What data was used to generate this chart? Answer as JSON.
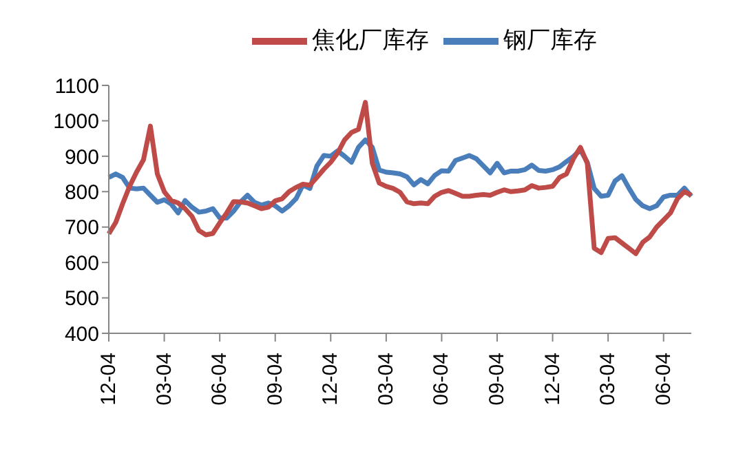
{
  "chart_data": {
    "type": "line",
    "categories": [
      "12-04",
      null,
      null,
      null,
      null,
      null,
      null,
      null,
      "03-04",
      null,
      null,
      null,
      null,
      null,
      null,
      null,
      "06-04",
      null,
      null,
      null,
      null,
      null,
      null,
      null,
      "09-04",
      null,
      null,
      null,
      null,
      null,
      null,
      null,
      "12-04",
      null,
      null,
      null,
      null,
      null,
      null,
      null,
      "03-04",
      null,
      null,
      null,
      null,
      null,
      null,
      null,
      "06-04",
      null,
      null,
      null,
      null,
      null,
      null,
      null,
      "09-04",
      null,
      null,
      null,
      null,
      null,
      null,
      null,
      "12-04",
      null,
      null,
      null,
      null,
      null,
      null,
      null,
      "03-04",
      null,
      null,
      null,
      null,
      null,
      null,
      null,
      "06-04",
      null,
      null,
      null,
      null
    ],
    "series": [
      {
        "name": "钢厂库存",
        "color": "#4a7ebb",
        "values": [
          840,
          850,
          840,
          810,
          808,
          810,
          790,
          770,
          777,
          765,
          740,
          775,
          756,
          742,
          745,
          752,
          726,
          725,
          745,
          771,
          790,
          770,
          762,
          768,
          760,
          745,
          760,
          780,
          819,
          809,
          872,
          902,
          900,
          915,
          900,
          883,
          925,
          946,
          925,
          861,
          855,
          853,
          850,
          842,
          819,
          834,
          822,
          846,
          859,
          858,
          888,
          895,
          902,
          893,
          873,
          853,
          880,
          853,
          858,
          858,
          862,
          875,
          860,
          858,
          862,
          870,
          885,
          899,
          918,
          883,
          809,
          787,
          790,
          830,
          845,
          810,
          778,
          760,
          752,
          760,
          785,
          790,
          790,
          810,
          787
        ]
      },
      {
        "name": "焦化厂库存",
        "color": "#be4b48",
        "values": [
          681,
          713,
          766,
          815,
          855,
          890,
          985,
          850,
          800,
          775,
          768,
          752,
          730,
          690,
          678,
          682,
          712,
          740,
          772,
          771,
          768,
          760,
          752,
          756,
          774,
          780,
          800,
          812,
          821,
          818,
          840,
          863,
          883,
          909,
          946,
          967,
          976,
          1052,
          880,
          824,
          815,
          809,
          798,
          771,
          766,
          768,
          766,
          787,
          798,
          803,
          795,
          787,
          787,
          790,
          792,
          790,
          798,
          805,
          800,
          802,
          805,
          817,
          810,
          812,
          815,
          840,
          850,
          893,
          925,
          880,
          640,
          628,
          668,
          670,
          655,
          640,
          625,
          657,
          672,
          700,
          720,
          740,
          780,
          800,
          790
        ]
      }
    ],
    "ylim": [
      400,
      1100
    ],
    "yticks": [
      400,
      500,
      600,
      700,
      800,
      900,
      1000,
      1100
    ],
    "grid": false,
    "legend": "top",
    "marker": "none",
    "line_style": "solid"
  }
}
